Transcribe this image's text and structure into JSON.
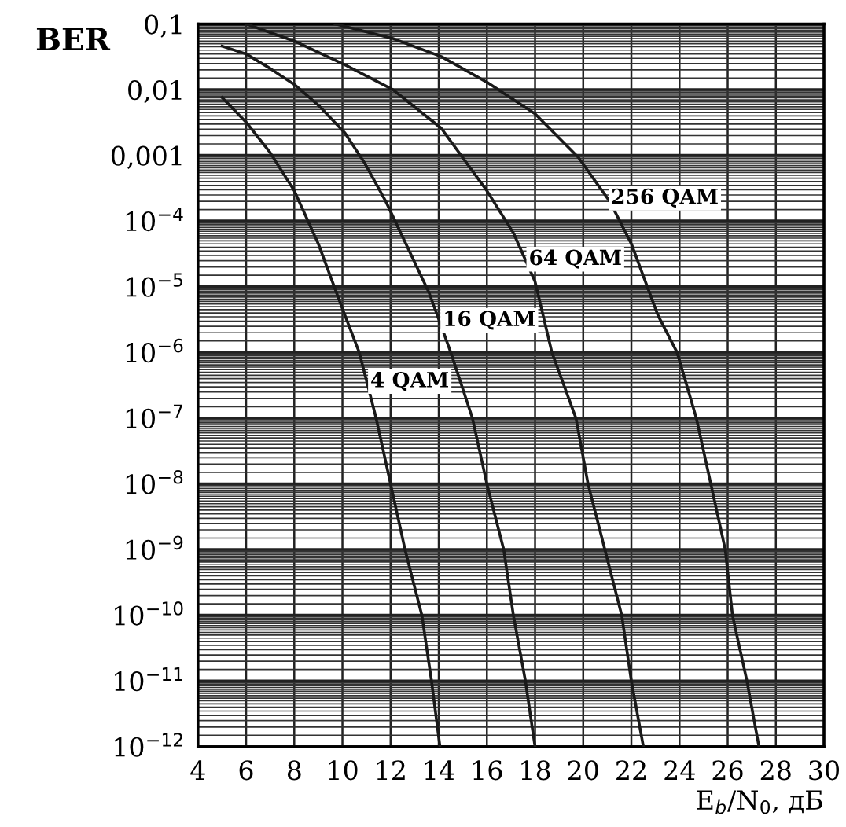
{
  "chart_data": {
    "type": "line",
    "ylabel": "BER",
    "xlabel": "E$_{b}$/N$_{0}$, дБ",
    "log": "y",
    "grid": true,
    "marker": "none",
    "line_style": "solid",
    "xlim": [
      4,
      30
    ],
    "xticks": [
      4,
      6,
      8,
      10,
      12,
      14,
      16,
      18,
      20,
      22,
      24,
      26,
      28,
      30
    ],
    "ylim": [
      1e-12,
      0.1
    ],
    "yticks": [
      {
        "value": 0.1,
        "label": "0,1"
      },
      {
        "value": 0.01,
        "label": "0,01"
      },
      {
        "value": 0.001,
        "label": "0,001"
      },
      {
        "value": 0.0001,
        "label": "10$^{−4}$"
      },
      {
        "value": 1e-05,
        "label": "10$^{−5}$"
      },
      {
        "value": 1e-06,
        "label": "10$^{−6}$"
      },
      {
        "value": 1e-07,
        "label": "10$^{−7}$"
      },
      {
        "value": 1e-08,
        "label": "10$^{−8}$"
      },
      {
        "value": 1e-09,
        "label": "10$^{−9}$"
      },
      {
        "value": 1e-10,
        "label": "10$^{−10}$"
      },
      {
        "value": 1e-11,
        "label": "10$^{−11}$"
      },
      {
        "value": 1e-12,
        "label": "10$^{−12}$"
      }
    ],
    "series": [
      {
        "name": "4 QAM",
        "color": "#1a1a1a",
        "x": [
          5.0,
          6.0,
          7.0,
          8.0,
          9.0,
          10.1,
          10.7,
          11.4,
          12.0,
          12.6,
          13.3,
          13.7,
          14.05
        ],
        "values": [
          0.0076,
          0.0032,
          0.0011,
          0.00029,
          4.5e-05,
          3.7e-06,
          1e-06,
          1e-07,
          1e-08,
          1e-09,
          1e-10,
          1e-11,
          1e-12
        ]
      },
      {
        "name": "16 QAM",
        "color": "#1a1a1a",
        "x": [
          5.0,
          6.0,
          7.0,
          8.0,
          9.0,
          10.1,
          10.9,
          11.8,
          13.6,
          14.5,
          15.4,
          16.0,
          16.7,
          17.1,
          17.6,
          18.0
        ],
        "values": [
          0.046,
          0.035,
          0.021,
          0.012,
          0.0058,
          0.0022,
          0.00079,
          0.0002,
          8.1e-06,
          1e-06,
          1e-07,
          1e-08,
          1e-09,
          1e-10,
          1e-11,
          1e-12
        ]
      },
      {
        "name": "64 QAM",
        "color": "#1a1a1a",
        "x": [
          6.0,
          8.0,
          10.1,
          12.1,
          14.1,
          16.0,
          17.1,
          18.0,
          18.7,
          19.7,
          20.2,
          20.9,
          21.6,
          22.0,
          22.5
        ],
        "values": [
          0.1,
          0.055,
          0.024,
          0.01,
          0.0026,
          0.00029,
          6.6e-05,
          1.2e-05,
          1e-06,
          1e-07,
          1e-08,
          1e-09,
          1e-10,
          1e-11,
          1e-12
        ]
      },
      {
        "name": "256 QAM",
        "color": "#1a1a1a",
        "x": [
          9.7,
          12.1,
          14.1,
          16.0,
          18.0,
          19.8,
          21.1,
          22.0,
          23.1,
          23.9,
          24.7,
          25.3,
          25.9,
          26.2,
          26.8,
          27.3
        ],
        "values": [
          0.1,
          0.06,
          0.032,
          0.013,
          0.0043,
          0.00093,
          0.0002,
          4.5e-05,
          3.7e-06,
          1e-06,
          1e-07,
          1e-08,
          1e-09,
          1e-10,
          1e-11,
          1e-12
        ]
      }
    ]
  }
}
